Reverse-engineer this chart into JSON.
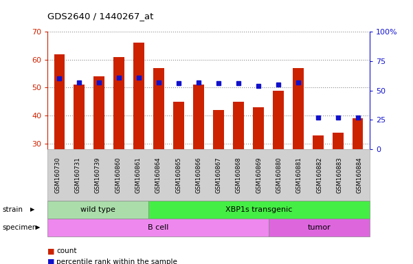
{
  "title": "GDS2640 / 1440267_at",
  "categories": [
    "GSM160730",
    "GSM160731",
    "GSM160739",
    "GSM160860",
    "GSM160861",
    "GSM160864",
    "GSM160865",
    "GSM160866",
    "GSM160867",
    "GSM160868",
    "GSM160869",
    "GSM160880",
    "GSM160881",
    "GSM160882",
    "GSM160883",
    "GSM160884"
  ],
  "counts": [
    62,
    51,
    54,
    61,
    66,
    57,
    45,
    51,
    42,
    45,
    43,
    49,
    57,
    33,
    34,
    39
  ],
  "percentiles": [
    60,
    57,
    57,
    61,
    61,
    57,
    56,
    57,
    56,
    56,
    54,
    55,
    57,
    27,
    27,
    27
  ],
  "ylim_left": [
    28,
    70
  ],
  "ylim_right": [
    0,
    100
  ],
  "yticks_left": [
    30,
    40,
    50,
    60,
    70
  ],
  "yticks_right": [
    0,
    25,
    50,
    75,
    100
  ],
  "bar_color": "#cc2200",
  "dot_color": "#1111cc",
  "bar_width": 0.55,
  "strain_groups": [
    {
      "label": "wild type",
      "start": 0,
      "end": 4,
      "color": "#aaddaa"
    },
    {
      "label": "XBP1s transgenic",
      "start": 5,
      "end": 15,
      "color": "#44ee44"
    }
  ],
  "specimen_groups": [
    {
      "label": "B cell",
      "start": 0,
      "end": 10,
      "color": "#ee88ee"
    },
    {
      "label": "tumor",
      "start": 11,
      "end": 15,
      "color": "#dd66dd"
    }
  ],
  "grid_color": "#888888",
  "tick_label_area_color": "#d0d0d0",
  "left_axis_color": "#cc2200",
  "right_axis_color": "#1111cc"
}
